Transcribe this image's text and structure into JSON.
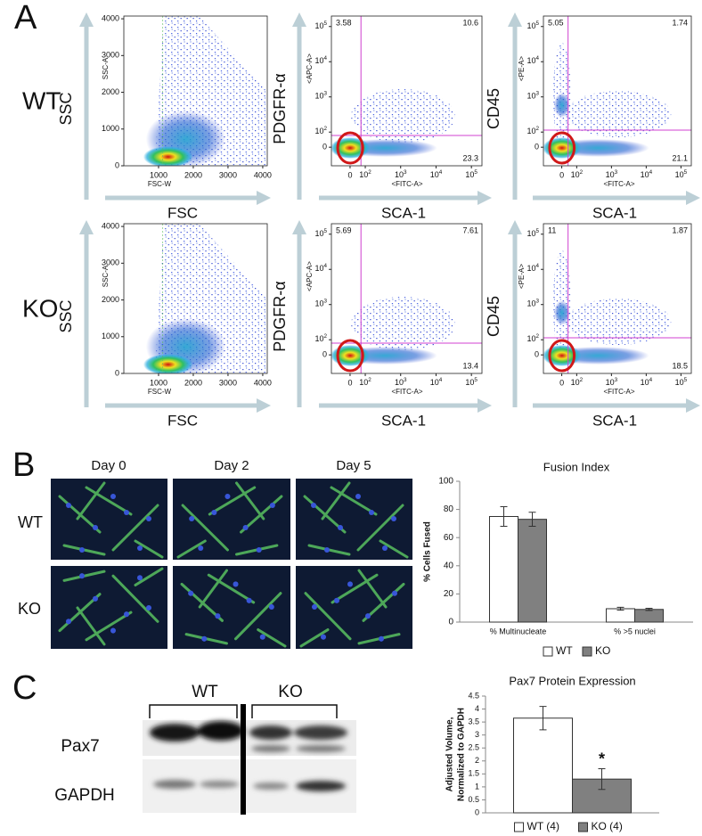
{
  "panel_a": {
    "label": "A",
    "rows": [
      "WT",
      "KO"
    ],
    "columns": [
      {
        "y_title": "SSC",
        "x_title": "FSC",
        "y_label": "SSC-A",
        "x_label": "FSC-W",
        "xlim": [
          0,
          4130
        ],
        "ylim": [
          0,
          4075
        ],
        "xticks": [
          1000,
          2000,
          3000,
          4000
        ],
        "yticks": [
          0,
          1000,
          2000,
          3000,
          4000
        ]
      },
      {
        "y_title": "PDGFR-α",
        "x_title": "SCA-1",
        "y_label": "<APC-A>",
        "x_label": "<FITC-A>",
        "xticks": [
          0,
          {
            "value": 100,
            "label": "10",
            "sup": "2"
          },
          {
            "value": 1000,
            "label": "10",
            "sup": "3"
          },
          {
            "value": 10000,
            "label": "10",
            "sup": "4"
          },
          {
            "value": 100000,
            "label": "10",
            "sup": "5"
          }
        ],
        "yticks": [
          0,
          {
            "value": 100,
            "label": "10",
            "sup": "2"
          },
          {
            "value": 1000,
            "label": "10",
            "sup": "3"
          },
          {
            "value": 10000,
            "label": "10",
            "sup": "4"
          },
          {
            "value": 100000,
            "label": "10",
            "sup": "5"
          }
        ],
        "quadrants": [
          [
            3.58,
            10.6,
            23.3
          ],
          [
            5.69,
            7.61,
            13.4
          ]
        ]
      },
      {
        "y_title": "CD45",
        "x_title": "SCA-1",
        "y_label": "<PE-A>",
        "x_label": "<FITC-A>",
        "xticks": [
          0,
          {
            "value": 100,
            "label": "10",
            "sup": "2"
          },
          {
            "value": 1000,
            "label": "10",
            "sup": "3"
          },
          {
            "value": 10000,
            "label": "10",
            "sup": "4"
          },
          {
            "value": 100000,
            "label": "10",
            "sup": "5"
          }
        ],
        "yticks": [
          0,
          {
            "value": 100,
            "label": "10",
            "sup": "2"
          },
          {
            "value": 1000,
            "label": "10",
            "sup": "3"
          },
          {
            "value": 10000,
            "label": "10",
            "sup": "4"
          },
          {
            "value": 100000,
            "label": "10",
            "sup": "5"
          }
        ],
        "quadrants": [
          [
            5.05,
            1.74,
            21.1
          ],
          [
            11,
            1.87,
            18.5
          ]
        ]
      }
    ]
  },
  "panel_b": {
    "label": "B",
    "days": [
      "Day 0",
      "Day 2",
      "Day 5"
    ],
    "rows": [
      "WT",
      "KO"
    ]
  },
  "panel_c": {
    "label": "C",
    "groups": [
      "WT",
      "KO"
    ],
    "bands": [
      "Pax7",
      "GAPDH"
    ]
  },
  "chart_data": [
    {
      "type": "bar",
      "title": "Fusion Index",
      "y_label": "% Cells Fused",
      "categories": [
        "% Multinucleate",
        "% >5 nuclei"
      ],
      "series": [
        {
          "name": "WT",
          "color": "#ffffff",
          "values": [
            75,
            9.5
          ],
          "errors": [
            7,
            1
          ]
        },
        {
          "name": "KO",
          "color": "#808080",
          "values": [
            73,
            9
          ],
          "errors": [
            5,
            0.8
          ]
        }
      ],
      "ylim": [
        0,
        100
      ],
      "yticks": [
        0,
        20,
        40,
        60,
        80,
        100
      ],
      "legend": "bottom"
    },
    {
      "type": "bar",
      "title": "Pax7 Protein Expression",
      "y_label": [
        "Adjusted Volume,",
        "Normalized to GAPDH"
      ],
      "series": [
        {
          "name": "WT (4)",
          "color": "#ffffff",
          "values": [
            3.65
          ],
          "errors": [
            0.45
          ]
        },
        {
          "name": "KO (4)",
          "color": "#808080",
          "values": [
            1.3
          ],
          "errors": [
            0.4
          ]
        }
      ],
      "ylim": [
        0,
        4.5
      ],
      "yticks": [
        0,
        0.5,
        1,
        1.5,
        2,
        2.5,
        3,
        3.5,
        4,
        4.5
      ],
      "annotations": [
        "*"
      ],
      "legend": "bottom"
    }
  ]
}
